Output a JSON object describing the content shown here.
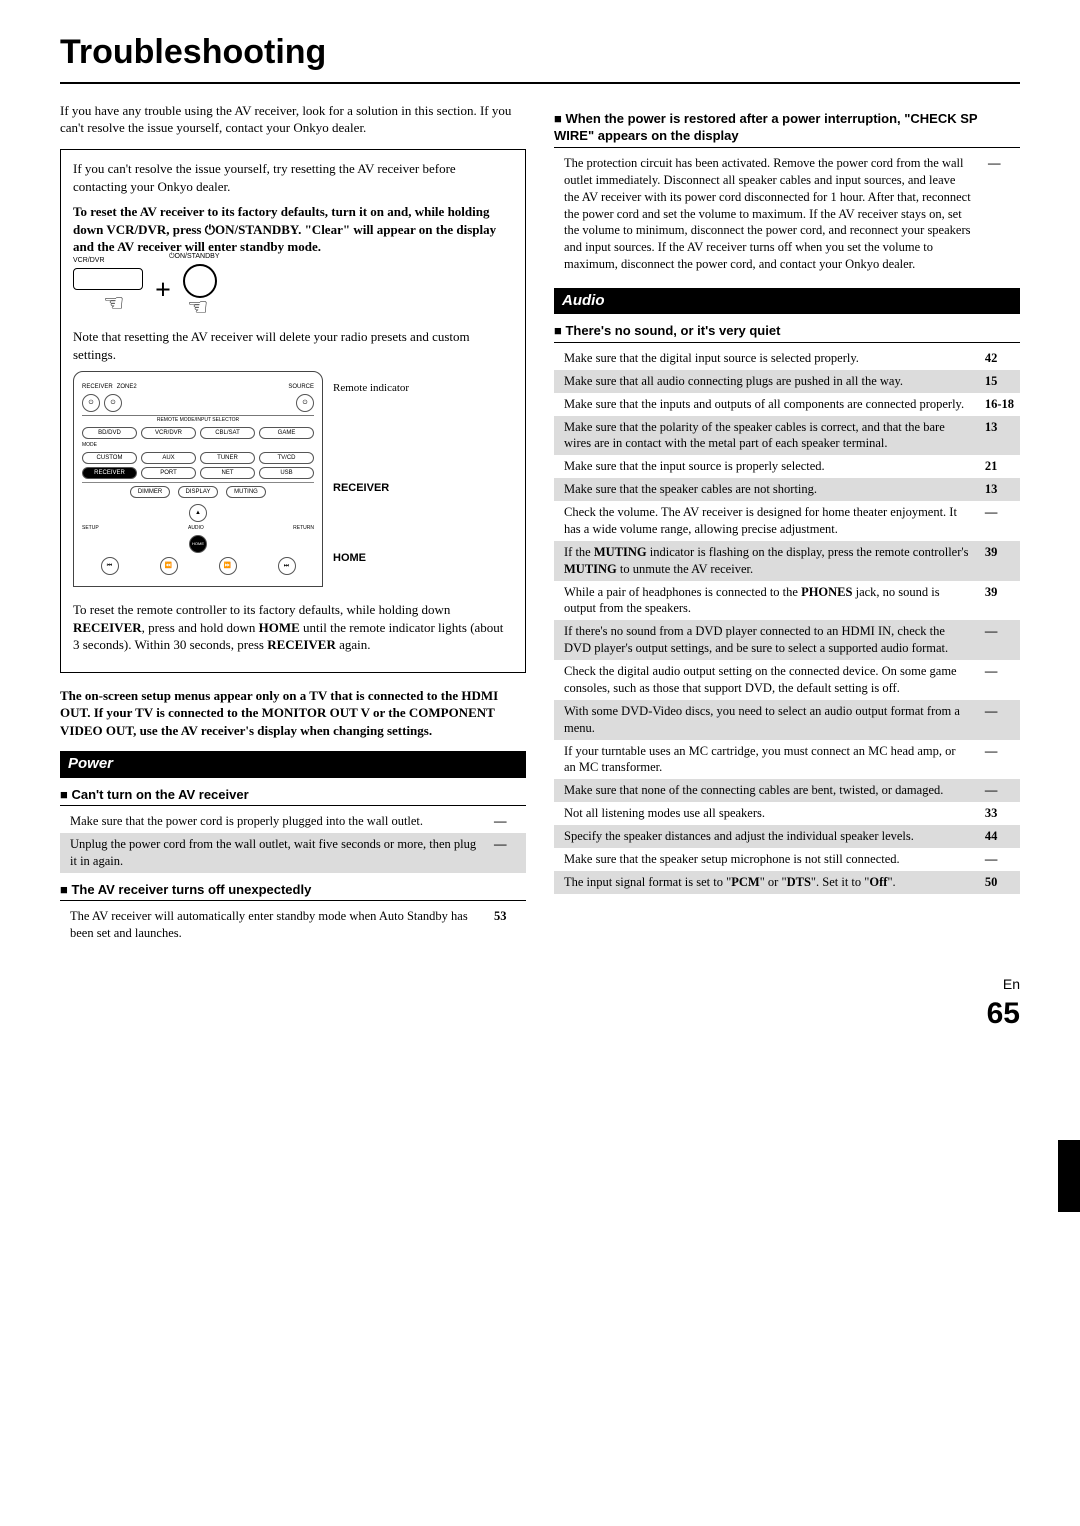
{
  "title": "Troubleshooting",
  "intro": "If you have any trouble using the AV receiver, look for a solution in this section. If you can't resolve the issue yourself, contact your Onkyo dealer.",
  "box": {
    "p1": "If you can't resolve the issue yourself, try resetting the AV receiver before contacting your Onkyo dealer.",
    "p2a": "To reset the AV receiver to its factory defaults, turn it on and, while holding down VCR/DVR, press ",
    "p2b": "ON/STANDBY. \"Clear\" will appear on the display and the AV receiver will enter standby mode.",
    "d1_vcr": "VCR/DVR",
    "d1_pwr": "⏻ON/STANDBY",
    "p3": "Note that resetting the AV receiver will delete your radio presets and custom settings.",
    "remote_labels": {
      "ind": "Remote indicator",
      "rec": "RECEIVER",
      "home": "HOME"
    },
    "remote_buttons": {
      "top": [
        "RECEIVER",
        "ZONE2",
        "SOURCE"
      ],
      "r2": [
        "BD/DVD",
        "VCR/DVR",
        "CBL/SAT",
        "GAME"
      ],
      "r3": [
        "CUSTOM",
        "AUX",
        "TUNER",
        "TV/CD"
      ],
      "r4": [
        "RECEIVER",
        "PORT",
        "NET",
        "USB"
      ],
      "r5": [
        "DIMMER",
        "DISPLAY",
        "MUTING"
      ],
      "nav": [
        "SETUP",
        "AUDIO",
        "RETURN",
        "HOME"
      ],
      "mode_label": "REMOTE MODE/INPUT SELECTOR",
      "mode": "MODE"
    },
    "p4a": "To reset the remote controller to its factory defaults, while holding down ",
    "p4b": "RECEIVER",
    "p4c": ", press and hold down ",
    "p4d": "HOME",
    "p4e": " until the remote indicator lights (about 3 seconds). Within 30 seconds, press ",
    "p4f": "RECEIVER",
    "p4g": " again."
  },
  "note": "The on-screen setup menus appear only on a TV that is connected to the HDMI OUT. If your TV is connected to the MONITOR OUT V or the COMPONENT VIDEO OUT, use the AV receiver's display when changing settings.",
  "power": {
    "header": "Power",
    "sub1": "Can't turn on the AV receiver",
    "rows1": [
      {
        "t": "Make sure that the power cord is properly plugged into the wall outlet.",
        "r": "—"
      },
      {
        "t": "Unplug the power cord from the wall outlet, wait five seconds or more, then plug it in again.",
        "r": "—",
        "s": true
      }
    ],
    "sub2": "The AV receiver turns off unexpectedly",
    "rows2": [
      {
        "t": "The AV receiver will automatically enter standby mode when Auto Standby has been set and launches.",
        "r": "53"
      }
    ]
  },
  "col2": {
    "sub1": "When the power is restored after a power interruption, \"CHECK SP WIRE\" appears on the display",
    "row1": {
      "t": "The protection circuit has been activated. Remove the power cord from the wall outlet immediately. Disconnect all speaker cables and input sources, and leave the AV receiver with its power cord disconnected for 1 hour. After that, reconnect the power cord and set the volume to maximum. If the AV receiver stays on, set the volume to minimum, disconnect the power cord, and reconnect your speakers and input sources. If the AV receiver turns off when you set the volume to maximum, disconnect the power cord, and contact your Onkyo dealer.",
      "r": "—"
    }
  },
  "audio": {
    "header": "Audio",
    "sub1": "There's no sound, or it's very quiet",
    "rows": [
      {
        "t": "Make sure that the digital input source is selected properly.",
        "r": "42"
      },
      {
        "t": "Make sure that all audio connecting plugs are pushed in all the way.",
        "r": "15",
        "s": true
      },
      {
        "t": "Make sure that the inputs and outputs of all components are connected properly.",
        "r": "16-18"
      },
      {
        "t": "Make sure that the polarity of the speaker cables is correct, and that the bare wires are in contact with the metal part of each speaker terminal.",
        "r": "13",
        "s": true
      },
      {
        "t": "Make sure that the input source is properly selected.",
        "r": "21"
      },
      {
        "t": "Make sure that the speaker cables are not shorting.",
        "r": "13",
        "s": true
      },
      {
        "t": "Check the volume. The AV receiver is designed for home theater enjoyment. It has a wide volume range, allowing precise adjustment.",
        "r": "—"
      },
      {
        "html": "If the <b>MUTING</b> indicator is flashing on the display, press the remote controller's <b>MUTING</b> to unmute the AV receiver.",
        "r": "39",
        "s": true
      },
      {
        "html": "While a pair of headphones is connected to the <b>PHONES</b> jack, no sound is output from the speakers.",
        "r": "39"
      },
      {
        "t": "If there's no sound from a DVD player connected to an HDMI IN, check the DVD player's output settings, and be sure to select a supported audio format.",
        "r": "—",
        "s": true
      },
      {
        "t": "Check the digital audio output setting on the connected device. On some game consoles, such as those that support DVD, the default setting is off.",
        "r": "—"
      },
      {
        "t": "With some DVD-Video discs, you need to select an audio output format from a menu.",
        "r": "—",
        "s": true
      },
      {
        "t": "If your turntable uses an MC cartridge, you must connect an MC head amp, or an MC transformer.",
        "r": "—"
      },
      {
        "t": "Make sure that none of the connecting cables are bent, twisted, or damaged.",
        "r": "—",
        "s": true
      },
      {
        "t": "Not all listening modes use all speakers.",
        "r": "33"
      },
      {
        "t": "Specify the speaker distances and adjust the individual speaker levels.",
        "r": "44",
        "s": true
      },
      {
        "t": "Make sure that the speaker setup microphone is not still connected.",
        "r": "—"
      },
      {
        "html": "The input signal format is set to \"<b>PCM</b>\" or \"<b>DTS</b>\". Set it to \"<b>Off</b>\".",
        "r": "50",
        "s": true
      }
    ]
  },
  "footer": {
    "lang": "En",
    "page": "65"
  }
}
